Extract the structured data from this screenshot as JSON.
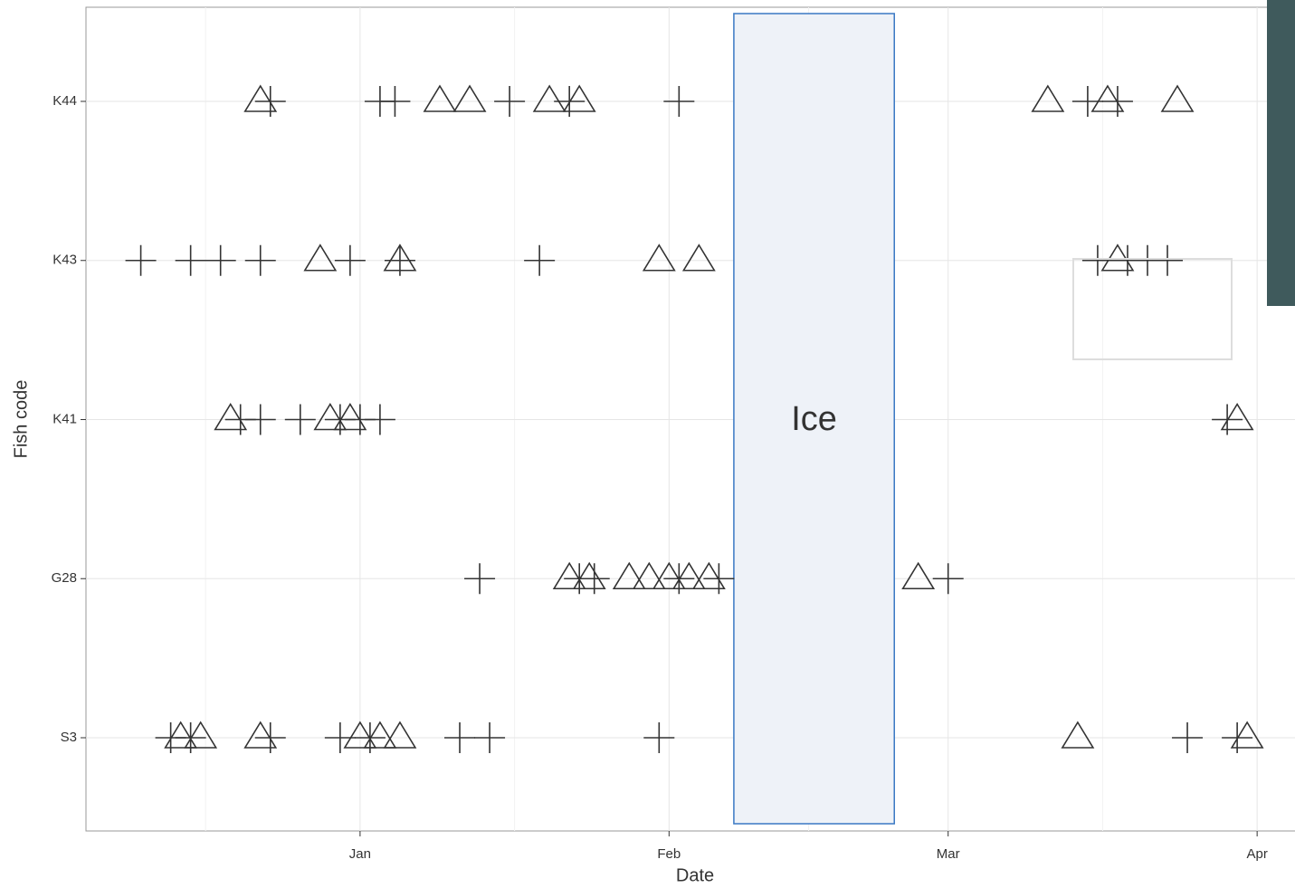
{
  "chart_data": {
    "type": "scatter",
    "x_label": "Date",
    "y_label": "Fish code",
    "categories": [
      "S3",
      "G28",
      "K41",
      "K43",
      "K44"
    ],
    "xlim": [
      -27.5,
      93.8
    ],
    "xticks": [
      {
        "value": 0,
        "label": "Jan"
      },
      {
        "value": 31,
        "label": "Feb"
      },
      {
        "value": 59,
        "label": "Mar"
      },
      {
        "value": 90,
        "label": "Apr"
      }
    ],
    "grid": true,
    "annotation": {
      "text": "Ice",
      "xlim": [
        37.5,
        53.6
      ]
    },
    "series": [
      {
        "marker": "triangle",
        "color": "#333333",
        "x": [
          -10,
          8,
          11,
          19,
          22,
          69,
          75,
          82,
          -4,
          4,
          30,
          34,
          76,
          -13,
          -3,
          -1,
          88,
          21,
          23,
          27,
          29,
          31,
          33,
          35,
          56,
          -18,
          -16,
          -10,
          0,
          2,
          4,
          72,
          89
        ],
        "y": [
          "K44",
          "K44",
          "K44",
          "K44",
          "K44",
          "K44",
          "K44",
          "K44",
          "K43",
          "K43",
          "K43",
          "K43",
          "K43",
          "K41",
          "K41",
          "K41",
          "K41",
          "G28",
          "G28",
          "G28",
          "G28",
          "G28",
          "G28",
          "G28",
          "G28",
          "S3",
          "S3",
          "S3",
          "S3",
          "S3",
          "S3",
          "S3",
          "S3"
        ]
      },
      {
        "marker": "plus",
        "color": "#333333",
        "x": [
          -9,
          2,
          3.5,
          15,
          21,
          32,
          73,
          76,
          -22,
          -17,
          -14,
          -10,
          -1,
          4,
          18,
          74,
          77,
          79,
          81,
          -12,
          -10,
          -6,
          -2,
          0,
          2,
          87,
          12,
          22,
          23.5,
          32,
          36,
          59,
          -19,
          -17,
          -9,
          -2,
          1,
          10,
          13,
          30,
          83,
          88
        ],
        "y": [
          "K44",
          "K44",
          "K44",
          "K44",
          "K44",
          "K44",
          "K44",
          "K44",
          "K43",
          "K43",
          "K43",
          "K43",
          "K43",
          "K43",
          "K43",
          "K43",
          "K43",
          "K43",
          "K43",
          "K41",
          "K41",
          "K41",
          "K41",
          "K41",
          "K41",
          "K41",
          "G28",
          "G28",
          "G28",
          "G28",
          "G28",
          "G28",
          "S3",
          "S3",
          "S3",
          "S3",
          "S3",
          "S3",
          "S3",
          "S3",
          "S3",
          "S3"
        ]
      }
    ]
  }
}
